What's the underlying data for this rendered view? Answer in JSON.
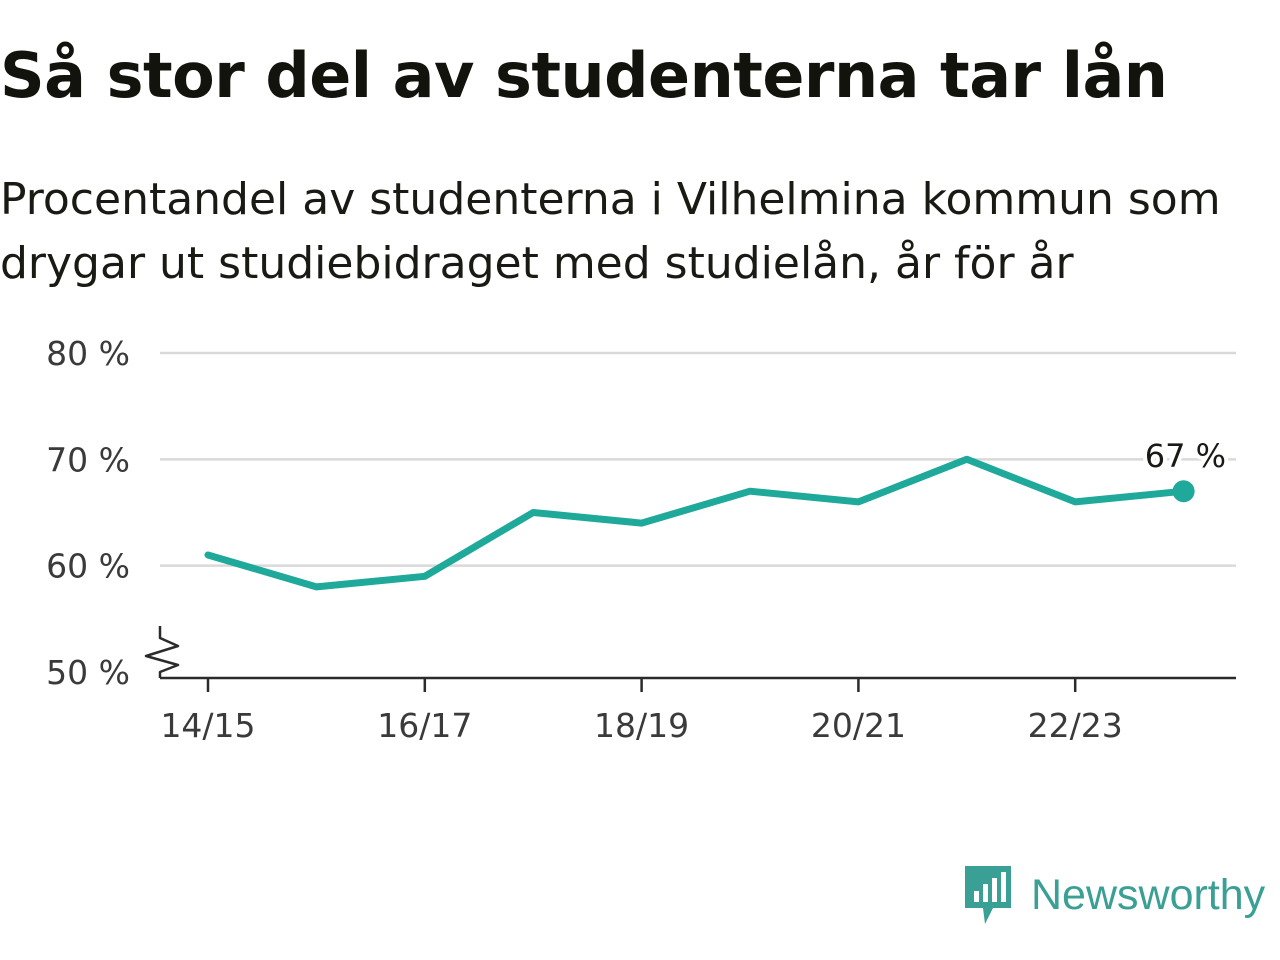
{
  "title": "Så stor del av studenterna tar lån",
  "subtitle": "Procentandel av studenterna i Vilhelmina kommun som drygar ut studiebidraget med studielån, år för år",
  "brand": {
    "name": "Newsworthy",
    "icon": "newsworthy-logo-icon",
    "color": "#3a9f95"
  },
  "chart_data": {
    "type": "line",
    "x": [
      "14/15",
      "15/16",
      "16/17",
      "17/18",
      "18/19",
      "19/20",
      "20/21",
      "21/22",
      "22/23",
      "23/24"
    ],
    "series": [
      {
        "values": [
          61,
          58,
          59,
          65,
          64,
          67,
          66,
          70,
          66,
          67
        ],
        "color": "#1fa99a"
      }
    ],
    "x_tick_labels": [
      "14/15",
      "16/17",
      "18/19",
      "20/21",
      "22/23"
    ],
    "y_ticks": [
      50,
      60,
      70,
      80
    ],
    "y_tick_labels": [
      "50 %",
      "60 %",
      "70 %",
      "80 %"
    ],
    "ylim": [
      50,
      80
    ],
    "grid": true,
    "axis_break": true,
    "last_point_label": "67 %"
  }
}
